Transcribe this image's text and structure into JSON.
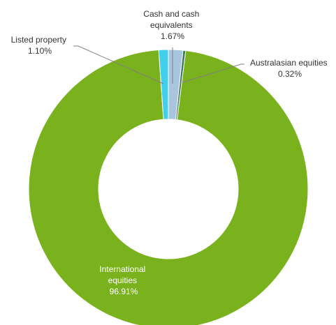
{
  "chart_data": {
    "type": "pie",
    "variant": "donut",
    "start_angle_deg": 0,
    "direction": "clockwise",
    "slices": [
      {
        "name": "Cash and cash equivalents",
        "value": 1.67,
        "label": "1.67%",
        "label_lines": [
          "Cash and cash",
          "equivalents",
          "1.67%"
        ],
        "color": "#a9c4dd"
      },
      {
        "name": "Australasian equities",
        "value": 0.32,
        "label": "0.32%",
        "label_lines": [
          "Australasian  equities",
          "0.32%"
        ],
        "color": "#3f7f5f"
      },
      {
        "name": "International equities",
        "value": 96.91,
        "label": "96.91%",
        "label_lines": [
          "International",
          "equities",
          "96.91%"
        ],
        "color": "#7ab21e"
      },
      {
        "name": "Listed property",
        "value": 1.1,
        "label": "1.10%",
        "label_lines": [
          "Listed property",
          "1.10%"
        ],
        "color": "#40d0ec"
      }
    ]
  }
}
